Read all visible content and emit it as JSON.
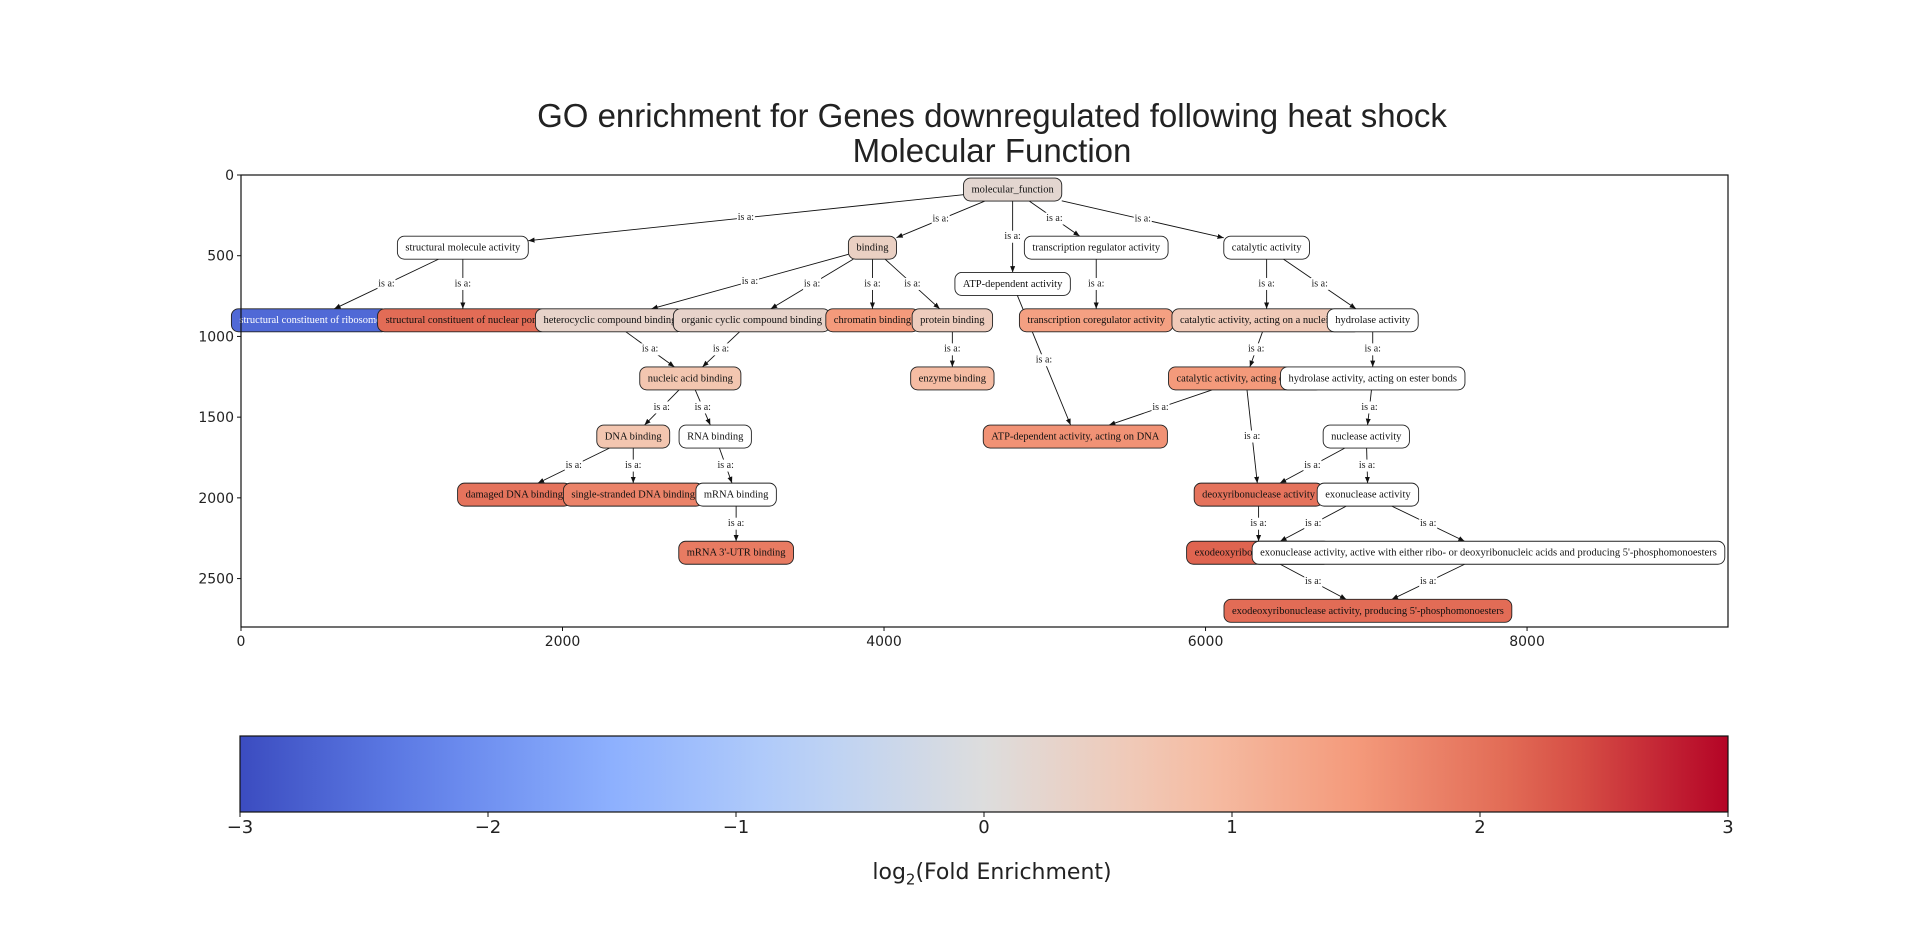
{
  "title": {
    "line1": "GO enrichment for Genes downregulated following heat shock",
    "line2": "Molecular Function"
  },
  "axes": {
    "xlim": [
      0,
      9250
    ],
    "ylim": [
      2800,
      0
    ],
    "x_ticks": [
      0,
      2000,
      4000,
      6000,
      8000
    ],
    "y_ticks": [
      0,
      500,
      1000,
      1500,
      2000,
      2500
    ]
  },
  "colormap": "coolwarm",
  "colorbar": {
    "min": -3,
    "max": 3,
    "ticks": [
      {
        "v": -3,
        "label": "−3"
      },
      {
        "v": -2,
        "label": "−2"
      },
      {
        "v": -1,
        "label": "−1"
      },
      {
        "v": 0,
        "label": "0"
      },
      {
        "v": 1,
        "label": "1"
      },
      {
        "v": 2,
        "label": "2"
      },
      {
        "v": 3,
        "label": "3"
      }
    ],
    "label_main": "log",
    "label_sub": "2",
    "label_rest": "(Fold Enrichment)"
  },
  "edge_label": "is a:",
  "nodes": [
    {
      "id": "molecular_function",
      "label": "molecular_function",
      "x": 4800,
      "y": 90,
      "value": 0.2
    },
    {
      "id": "structural_molecule_activity",
      "label": "structural molecule activity",
      "x": 1380,
      "y": 450,
      "value": null
    },
    {
      "id": "binding",
      "label": "binding",
      "x": 3928,
      "y": 450,
      "value": 0.4
    },
    {
      "id": "transcription_regulator_activity",
      "label": "transcription regulator activity",
      "x": 5320,
      "y": 450,
      "value": null
    },
    {
      "id": "catalytic_activity",
      "label": "catalytic activity",
      "x": 6380,
      "y": 450,
      "value": null
    },
    {
      "id": "atp_dependent_activity",
      "label": "ATP-dependent activity",
      "x": 4800,
      "y": 675,
      "value": null
    },
    {
      "id": "structural_constituent_of_ribosome",
      "label": "structural constituent of ribosome",
      "x": 430,
      "y": 900,
      "value": -2.6
    },
    {
      "id": "structural_constituent_of_nuclear_pore",
      "label": "structural constituent of nuclear pore",
      "x": 1380,
      "y": 900,
      "value": 2.1
    },
    {
      "id": "heterocyclic_compound_binding",
      "label": "heterocyclic compound binding",
      "x": 2295,
      "y": 900,
      "value": 0.3
    },
    {
      "id": "organic_cyclic_compound_binding",
      "label": "organic cyclic compound binding",
      "x": 3177,
      "y": 900,
      "value": 0.3
    },
    {
      "id": "chromatin_binding",
      "label": "chromatin binding",
      "x": 3928,
      "y": 900,
      "value": 1.5
    },
    {
      "id": "protein_binding",
      "label": "protein binding",
      "x": 4425,
      "y": 900,
      "value": 0.5
    },
    {
      "id": "transcription_coregulator_activity",
      "label": "transcription coregulator activity",
      "x": 5320,
      "y": 900,
      "value": 1.4
    },
    {
      "id": "catalytic_activity_nucleic_acid",
      "label": "catalytic activity, acting on a nucleic acid",
      "x": 6380,
      "y": 900,
      "value": 0.6
    },
    {
      "id": "hydrolase_activity",
      "label": "hydrolase activity",
      "x": 7040,
      "y": 900,
      "value": null
    },
    {
      "id": "nucleic_acid_binding",
      "label": "nucleic acid binding",
      "x": 2795,
      "y": 1260,
      "value": 0.7
    },
    {
      "id": "enzyme_binding",
      "label": "enzyme binding",
      "x": 4425,
      "y": 1260,
      "value": 0.9
    },
    {
      "id": "catalytic_activity_dna",
      "label": "catalytic activity, acting on DNA",
      "x": 6250,
      "y": 1260,
      "value": 1.5
    },
    {
      "id": "hydrolase_activity_ester",
      "label": "hydrolase activity, acting on ester bonds",
      "x": 7040,
      "y": 1260,
      "value": null
    },
    {
      "id": "dna_binding",
      "label": "DNA binding",
      "x": 2440,
      "y": 1620,
      "value": 0.7
    },
    {
      "id": "rna_binding",
      "label": "RNA binding",
      "x": 2950,
      "y": 1620,
      "value": null
    },
    {
      "id": "atp_dependent_activity_dna",
      "label": "ATP-dependent activity, acting on DNA",
      "x": 5190,
      "y": 1620,
      "value": 1.6
    },
    {
      "id": "nuclease_activity",
      "label": "nuclease activity",
      "x": 7000,
      "y": 1620,
      "value": null
    },
    {
      "id": "damaged_dna_binding",
      "label": "damaged DNA binding",
      "x": 1700,
      "y": 1980,
      "value": 2.0
    },
    {
      "id": "single_stranded_dna_binding",
      "label": "single-stranded DNA binding",
      "x": 2440,
      "y": 1980,
      "value": 1.8
    },
    {
      "id": "mrna_binding",
      "label": "mRNA binding",
      "x": 3080,
      "y": 1980,
      "value": null
    },
    {
      "id": "deoxyribonuclease_activity",
      "label": "deoxyribonuclease activity",
      "x": 6330,
      "y": 1980,
      "value": 2.0
    },
    {
      "id": "exonuclease_activity",
      "label": "exonuclease activity",
      "x": 7010,
      "y": 1980,
      "value": null
    },
    {
      "id": "mrna_3utr_binding",
      "label": "mRNA 3'-UTR binding",
      "x": 3080,
      "y": 2340,
      "value": 1.9
    },
    {
      "id": "exodeoxyribonuclease_activity",
      "label": "exodeoxyribonuclease activity",
      "x": 6330,
      "y": 2340,
      "value": 2.2
    },
    {
      "id": "exonuclease_activity_5p",
      "label": "exonuclease activity, active with either ribo- or deoxyribonucleic acids and producing 5'-phosphomonoesters",
      "x": 7760,
      "y": 2340,
      "value": null
    },
    {
      "id": "exodeoxyribonuclease_5p",
      "label": "exodeoxyribonuclease activity, producing 5'-phosphomonoesters",
      "x": 7010,
      "y": 2700,
      "value": 2.1
    }
  ],
  "edges": [
    [
      "structural_molecule_activity",
      "molecular_function"
    ],
    [
      "binding",
      "molecular_function"
    ],
    [
      "atp_dependent_activity",
      "molecular_function"
    ],
    [
      "transcription_regulator_activity",
      "molecular_function"
    ],
    [
      "catalytic_activity",
      "molecular_function"
    ],
    [
      "structural_constituent_of_ribosome",
      "structural_molecule_activity"
    ],
    [
      "structural_constituent_of_nuclear_pore",
      "structural_molecule_activity"
    ],
    [
      "heterocyclic_compound_binding",
      "binding"
    ],
    [
      "organic_cyclic_compound_binding",
      "binding"
    ],
    [
      "chromatin_binding",
      "binding"
    ],
    [
      "protein_binding",
      "binding"
    ],
    [
      "transcription_coregulator_activity",
      "transcription_regulator_activity"
    ],
    [
      "catalytic_activity_nucleic_acid",
      "catalytic_activity"
    ],
    [
      "hydrolase_activity",
      "catalytic_activity"
    ],
    [
      "nucleic_acid_binding",
      "heterocyclic_compound_binding"
    ],
    [
      "nucleic_acid_binding",
      "organic_cyclic_compound_binding"
    ],
    [
      "enzyme_binding",
      "protein_binding"
    ],
    [
      "catalytic_activity_dna",
      "catalytic_activity_nucleic_acid"
    ],
    [
      "hydrolase_activity_ester",
      "hydrolase_activity"
    ],
    [
      "atp_dependent_activity_dna",
      "atp_dependent_activity"
    ],
    [
      "atp_dependent_activity_dna",
      "catalytic_activity_dna"
    ],
    [
      "dna_binding",
      "nucleic_acid_binding"
    ],
    [
      "rna_binding",
      "nucleic_acid_binding"
    ],
    [
      "nuclease_activity",
      "hydrolase_activity_ester"
    ],
    [
      "damaged_dna_binding",
      "dna_binding"
    ],
    [
      "single_stranded_dna_binding",
      "dna_binding"
    ],
    [
      "mrna_binding",
      "rna_binding"
    ],
    [
      "deoxyribonuclease_activity",
      "catalytic_activity_dna"
    ],
    [
      "deoxyribonuclease_activity",
      "nuclease_activity"
    ],
    [
      "exonuclease_activity",
      "nuclease_activity"
    ],
    [
      "mrna_3utr_binding",
      "mrna_binding"
    ],
    [
      "exodeoxyribonuclease_activity",
      "deoxyribonuclease_activity"
    ],
    [
      "exodeoxyribonuclease_activity",
      "exonuclease_activity"
    ],
    [
      "exonuclease_activity_5p",
      "exonuclease_activity"
    ],
    [
      "exodeoxyribonuclease_5p",
      "exodeoxyribonuclease_activity"
    ],
    [
      "exodeoxyribonuclease_5p",
      "exonuclease_activity_5p"
    ]
  ]
}
